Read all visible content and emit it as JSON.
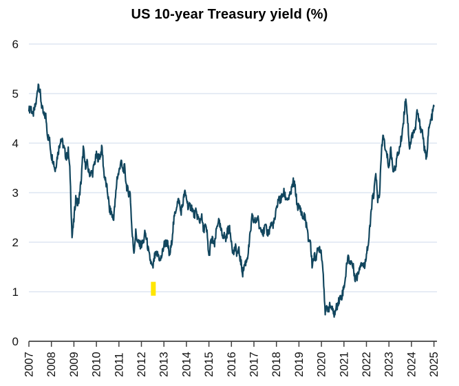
{
  "title": "US 10-year Treasury yield (%)",
  "colors": {
    "line": "#12465e",
    "gridline": "#dde6f2",
    "axis": "#404040",
    "tick_label": "#111111",
    "highlight_marker": "#ffe600",
    "background": "#ffffff"
  },
  "chart_data": {
    "type": "line",
    "title": "US 10-year Treasury yield (%)",
    "xlabel": "",
    "ylabel": "",
    "grid": "horizontal",
    "legend": "none",
    "xlim": [
      2007,
      2025.1
    ],
    "ylim": [
      0,
      6
    ],
    "y_ticks": [
      0,
      1,
      2,
      3,
      4,
      5,
      6
    ],
    "x_tick_labels": [
      "2007",
      "2008",
      "2009",
      "2010",
      "2011",
      "2012",
      "2013",
      "2014",
      "2015",
      "2016",
      "2017",
      "2018",
      "2019",
      "2020",
      "2021",
      "2022",
      "2023",
      "2024",
      "2025"
    ],
    "series": [
      {
        "name": "US 10-year Treasury yield (%)",
        "start_year": 2007,
        "interval_months": 1,
        "monthly_values": [
          4.65,
          4.75,
          4.55,
          4.68,
          4.85,
          5.22,
          5.0,
          4.7,
          4.55,
          4.55,
          4.15,
          4.05,
          3.75,
          3.65,
          3.45,
          3.7,
          3.9,
          4.1,
          4.0,
          3.85,
          3.7,
          3.85,
          3.35,
          2.1,
          2.45,
          2.9,
          2.75,
          2.95,
          3.3,
          3.9,
          3.55,
          3.6,
          3.4,
          3.4,
          3.4,
          3.6,
          3.75,
          3.7,
          3.75,
          3.9,
          3.4,
          3.2,
          3.0,
          2.65,
          2.6,
          2.45,
          2.8,
          3.3,
          3.4,
          3.65,
          3.45,
          3.5,
          3.15,
          3.0,
          3.0,
          2.2,
          1.8,
          2.2,
          2.0,
          1.95,
          1.95,
          2.0,
          2.2,
          2.0,
          1.75,
          1.6,
          1.45,
          1.7,
          1.75,
          1.75,
          1.62,
          1.75,
          1.95,
          2.0,
          1.95,
          1.72,
          1.95,
          2.35,
          2.6,
          2.78,
          2.85,
          2.6,
          2.75,
          3.0,
          2.9,
          2.7,
          2.72,
          2.7,
          2.55,
          2.6,
          2.52,
          2.4,
          2.55,
          2.25,
          2.33,
          2.18,
          1.7,
          2.0,
          2.05,
          1.92,
          2.25,
          2.45,
          2.3,
          2.15,
          2.15,
          2.05,
          2.25,
          2.25,
          2.05,
          1.75,
          1.9,
          1.78,
          1.82,
          1.6,
          1.38,
          1.55,
          1.62,
          1.8,
          2.15,
          2.5,
          2.42,
          2.42,
          2.5,
          2.28,
          2.3,
          2.18,
          2.32,
          2.2,
          2.2,
          2.36,
          2.35,
          2.42,
          2.65,
          2.88,
          2.84,
          2.92,
          3.0,
          2.9,
          2.88,
          2.9,
          3.05,
          3.22,
          3.1,
          2.75,
          2.7,
          2.66,
          2.5,
          2.52,
          2.35,
          2.05,
          2.05,
          1.55,
          1.7,
          1.7,
          1.82,
          1.9,
          1.8,
          1.35,
          0.6,
          0.65,
          0.68,
          0.72,
          0.6,
          0.55,
          0.68,
          0.8,
          0.88,
          0.93,
          1.1,
          1.35,
          1.72,
          1.62,
          1.6,
          1.48,
          1.28,
          1.3,
          1.45,
          1.6,
          1.55,
          1.5,
          1.8,
          1.95,
          2.35,
          2.85,
          2.95,
          3.45,
          2.8,
          3.0,
          3.8,
          4.2,
          3.85,
          3.75,
          3.5,
          3.9,
          3.5,
          3.45,
          3.65,
          3.8,
          3.95,
          4.2,
          4.55,
          4.95,
          4.45,
          3.9,
          4.1,
          4.25,
          4.25,
          4.65,
          4.45,
          4.3,
          4.2,
          3.85,
          3.68,
          4.2,
          4.4,
          4.55,
          4.75
        ]
      }
    ],
    "annotations": [
      {
        "type": "highlight-bar",
        "description": "small yellow marker near the 1% gridline in mid-2012",
        "color": "#ffe600",
        "x_year": 2012.53,
        "y_from": 0.92,
        "y_to": 1.2
      }
    ]
  }
}
